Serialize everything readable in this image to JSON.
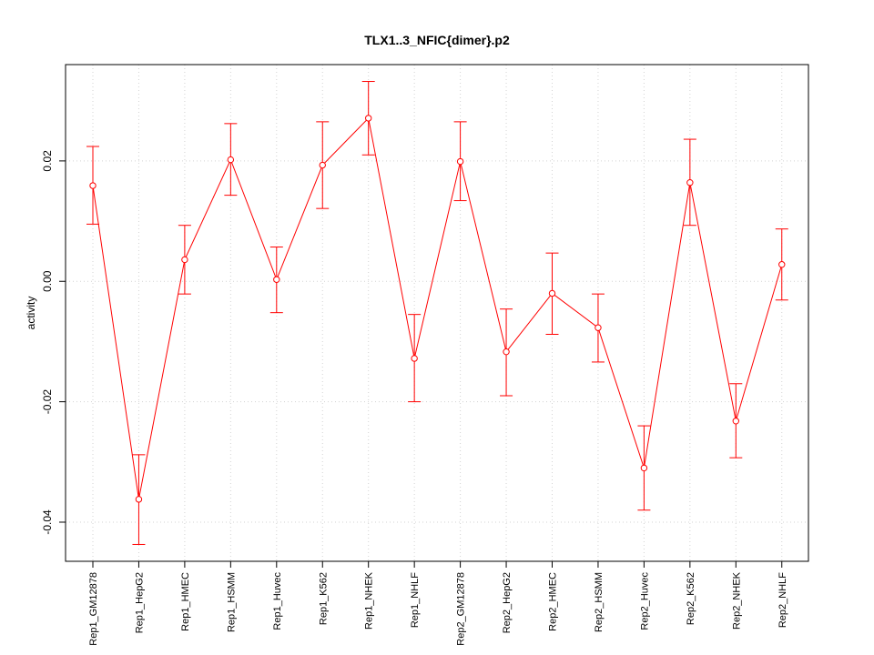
{
  "chart_data": {
    "type": "line",
    "title": "TLX1..3_NFIC{dimer}.p2",
    "xlabel": "",
    "ylabel": "activity",
    "ylim": [
      -0.0465,
      0.036
    ],
    "yticks": [
      -0.04,
      -0.02,
      0.0,
      0.02
    ],
    "ytick_labels": [
      "-0.04",
      "-0.02",
      "0.00",
      "0.02"
    ],
    "grid": true,
    "series_color": "#ff0000",
    "grid_color": "#d3d3d3",
    "categories": [
      "Rep1_GM12878",
      "Rep1_HepG2",
      "Rep1_HMEC",
      "Rep1_HSMM",
      "Rep1_Huvec",
      "Rep1_K562",
      "Rep1_NHEK",
      "Rep1_NHLF",
      "Rep2_GM12878",
      "Rep2_HepG2",
      "Rep2_HMEC",
      "Rep2_HSMM",
      "Rep2_Huvec",
      "Rep2_K562",
      "Rep2_NHEK",
      "Rep2_NHLF"
    ],
    "values": [
      0.0159,
      -0.0362,
      0.0036,
      0.0202,
      0.0003,
      0.0193,
      0.0271,
      -0.0128,
      0.0199,
      -0.0117,
      -0.002,
      -0.0077,
      -0.031,
      0.0164,
      -0.0232,
      0.0028
    ],
    "err_upper": [
      0.0224,
      -0.0288,
      0.0093,
      0.0262,
      0.0057,
      0.0265,
      0.0332,
      -0.0055,
      0.0265,
      -0.0046,
      0.0047,
      -0.0021,
      -0.024,
      0.0236,
      -0.017,
      0.0087
    ],
    "err_lower": [
      0.0095,
      -0.0437,
      -0.0021,
      0.0143,
      -0.0052,
      0.0121,
      0.021,
      -0.02,
      0.0134,
      -0.019,
      -0.0088,
      -0.0134,
      -0.038,
      0.0093,
      -0.0293,
      -0.0031
    ]
  }
}
